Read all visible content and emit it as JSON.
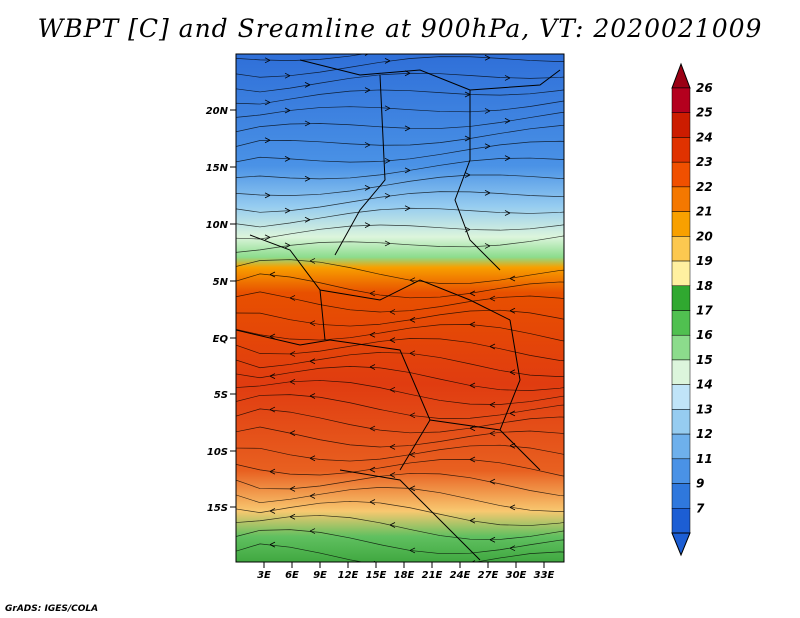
{
  "title": "WBPT [C] and Sreamline at 900hPa, VT: 2020021009",
  "credit": "GrADS: IGES/COLA",
  "map": {
    "lat_ticks": [
      "20N",
      "15N",
      "10N",
      "5N",
      "EQ",
      "5S",
      "10S",
      "15S"
    ],
    "lon_ticks": [
      "3E",
      "6E",
      "9E",
      "12E",
      "15E",
      "18E",
      "21E",
      "24E",
      "27E",
      "30E",
      "33E"
    ],
    "lat_range": [
      -20,
      25
    ],
    "lon_range": [
      0,
      35
    ]
  },
  "colorbar": {
    "labels": [
      "26",
      "25",
      "24",
      "23",
      "22",
      "21",
      "20",
      "19",
      "18",
      "17",
      "16",
      "15",
      "14",
      "13",
      "12",
      "11",
      "9",
      "7"
    ],
    "colors": [
      "#b4001e",
      "#cc1c00",
      "#e03200",
      "#f05000",
      "#f47800",
      "#f8a000",
      "#fcc850",
      "#fff0a0",
      "#30a830",
      "#50c050",
      "#8cdc8c",
      "#dcf5dc",
      "#c0e4f8",
      "#96ccf0",
      "#6eb0ec",
      "#4a92e6",
      "#2f78dd",
      "#1c5ed4"
    ]
  }
}
